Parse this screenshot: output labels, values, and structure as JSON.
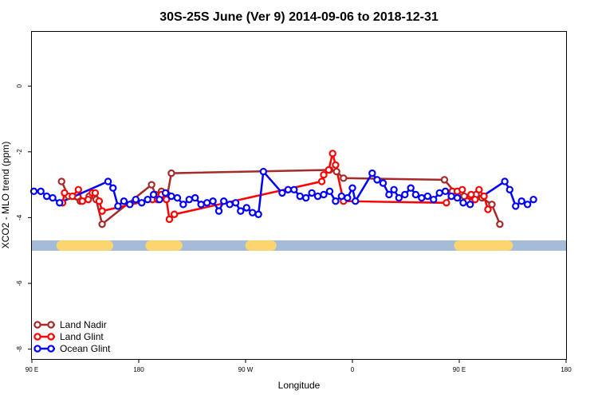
{
  "chart_data": {
    "type": "line",
    "title": "30S-25S June (Ver 9)   2014-09-06 to 2018-12-31",
    "xlabel": "Longitude",
    "ylabel": "XCO2 - MLO trend (ppm)",
    "xlim": [
      -90,
      180
    ],
    "ylim": [
      -8.3,
      1.65
    ],
    "x_axis_ticks": [
      {
        "value": -90,
        "label": "90 E"
      },
      {
        "value": -36,
        "label": "180"
      },
      {
        "value": 18,
        "label": "90 W"
      },
      {
        "value": 72,
        "label": "0"
      },
      {
        "value": 126,
        "label": "90 E"
      },
      {
        "value": 180,
        "label": "180"
      }
    ],
    "y_axis_ticks": [
      {
        "value": 0,
        "label": "0"
      },
      {
        "value": -2,
        "label": "-2"
      },
      {
        "value": -4,
        "label": "-4"
      },
      {
        "value": -6,
        "label": "-6"
      },
      {
        "value": -8,
        "label": "-8"
      }
    ],
    "grid": false,
    "legend_position": "bottom-left",
    "land_ocean_strip": {
      "y": -4.85,
      "ocean_color": "#a4bcd8",
      "land_color": "#fcd570",
      "land_segments": [
        [
          -75,
          -51.5
        ],
        [
          -30,
          -16.5
        ],
        [
          20.5,
          31
        ],
        [
          126,
          150.5
        ]
      ]
    },
    "series": [
      {
        "name": "Land Nadir",
        "color": "#a52a2a",
        "points": [
          [
            -75,
            -2.9
          ],
          [
            -71.5,
            -3.35
          ],
          [
            -65.5,
            -3.5
          ],
          [
            -61,
            -3.35
          ],
          [
            -57.5,
            -3.45
          ],
          [
            -54.5,
            -4.2
          ],
          [
            -29.5,
            -3.0
          ],
          [
            -27.5,
            -3.3
          ],
          [
            -24.5,
            -3.2
          ],
          [
            -21.5,
            -3.3
          ],
          [
            -19.5,
            -2.65
          ],
          [
            60.5,
            -2.55
          ],
          [
            64,
            -2.6
          ],
          [
            67.5,
            -2.8
          ],
          [
            118.5,
            -2.85
          ],
          [
            125.5,
            -3.35
          ],
          [
            128.5,
            -3.35
          ],
          [
            131.5,
            -3.35
          ],
          [
            134.5,
            -3.3
          ],
          [
            137.5,
            -3.4
          ],
          [
            142.5,
            -3.6
          ],
          [
            146.5,
            -4.2
          ]
        ]
      },
      {
        "name": "Land Glint",
        "color": "#ff0000",
        "points": [
          [
            -74.5,
            -3.55
          ],
          [
            -73.5,
            -3.25
          ],
          [
            -69.5,
            -3.35
          ],
          [
            -66.5,
            -3.15
          ],
          [
            -64.5,
            -3.5
          ],
          [
            -61.5,
            -3.45
          ],
          [
            -59.5,
            -3.25
          ],
          [
            -58,
            -3.25
          ],
          [
            -56,
            -3.5
          ],
          [
            -54.5,
            -3.8
          ],
          [
            -29,
            -3.45
          ],
          [
            -26.5,
            -3.45
          ],
          [
            -24.5,
            -3.3
          ],
          [
            -22,
            -3.45
          ],
          [
            -20.5,
            -4.05
          ],
          [
            -18,
            -3.9
          ],
          [
            56.5,
            -2.9
          ],
          [
            57.5,
            -2.7
          ],
          [
            60,
            -2.55
          ],
          [
            62,
            -2.05
          ],
          [
            63.5,
            -2.4
          ],
          [
            67.5,
            -3.5
          ],
          [
            119.5,
            -3.55
          ],
          [
            122.5,
            -3.2
          ],
          [
            125,
            -3.2
          ],
          [
            127.5,
            -3.15
          ],
          [
            130,
            -3.5
          ],
          [
            132,
            -3.3
          ],
          [
            134,
            -3.45
          ],
          [
            136,
            -3.15
          ],
          [
            138.5,
            -3.35
          ],
          [
            140.5,
            -3.75
          ]
        ]
      },
      {
        "name": "Ocean Glint",
        "color": "#0000ff",
        "points": [
          [
            -89,
            -3.2
          ],
          [
            -85.5,
            -3.2
          ],
          [
            -82.5,
            -3.35
          ],
          [
            -79.5,
            -3.4
          ],
          [
            -76,
            -3.55
          ],
          [
            -51.5,
            -2.9
          ],
          [
            -49,
            -3.1
          ],
          [
            -46.5,
            -3.65
          ],
          [
            -43.5,
            -3.5
          ],
          [
            -40.5,
            -3.6
          ],
          [
            -37.5,
            -3.45
          ],
          [
            -34.5,
            -3.55
          ],
          [
            -31.5,
            -3.45
          ],
          [
            -28.5,
            -3.3
          ],
          [
            -25.5,
            -3.45
          ],
          [
            -22.5,
            -3.25
          ],
          [
            -19.5,
            -3.35
          ],
          [
            -16.5,
            -3.4
          ],
          [
            -13.5,
            -3.6
          ],
          [
            -10.5,
            -3.45
          ],
          [
            -7.5,
            -3.4
          ],
          [
            -4.5,
            -3.6
          ],
          [
            -1.5,
            -3.55
          ],
          [
            1.5,
            -3.5
          ],
          [
            4.5,
            -3.8
          ],
          [
            7,
            -3.5
          ],
          [
            10,
            -3.6
          ],
          [
            13,
            -3.55
          ],
          [
            15.5,
            -3.8
          ],
          [
            18.5,
            -3.7
          ],
          [
            21.5,
            -3.85
          ],
          [
            24.5,
            -3.9
          ],
          [
            27,
            -2.6
          ],
          [
            36.5,
            -3.25
          ],
          [
            39.5,
            -3.15
          ],
          [
            42.5,
            -3.15
          ],
          [
            45.5,
            -3.35
          ],
          [
            48.5,
            -3.4
          ],
          [
            51.5,
            -3.25
          ],
          [
            54.5,
            -3.35
          ],
          [
            57.5,
            -3.3
          ],
          [
            60.5,
            -3.2
          ],
          [
            63.5,
            -3.5
          ],
          [
            66.5,
            -3.35
          ],
          [
            69.5,
            -3.4
          ],
          [
            72,
            -3.1
          ],
          [
            73.5,
            -3.5
          ],
          [
            82,
            -2.65
          ],
          [
            84.5,
            -2.85
          ],
          [
            87.5,
            -2.95
          ],
          [
            90.5,
            -3.3
          ],
          [
            93,
            -3.15
          ],
          [
            95.5,
            -3.4
          ],
          [
            98.5,
            -3.3
          ],
          [
            101.5,
            -3.1
          ],
          [
            104,
            -3.3
          ],
          [
            107,
            -3.4
          ],
          [
            110,
            -3.35
          ],
          [
            113,
            -3.45
          ],
          [
            116,
            -3.25
          ],
          [
            119,
            -3.2
          ],
          [
            122,
            -3.35
          ],
          [
            125,
            -3.4
          ],
          [
            128,
            -3.55
          ],
          [
            131.5,
            -3.6
          ],
          [
            149,
            -2.9
          ],
          [
            151.5,
            -3.15
          ],
          [
            154.5,
            -3.65
          ],
          [
            157.5,
            -3.5
          ],
          [
            160.5,
            -3.6
          ],
          [
            163.5,
            -3.45
          ]
        ]
      }
    ]
  }
}
